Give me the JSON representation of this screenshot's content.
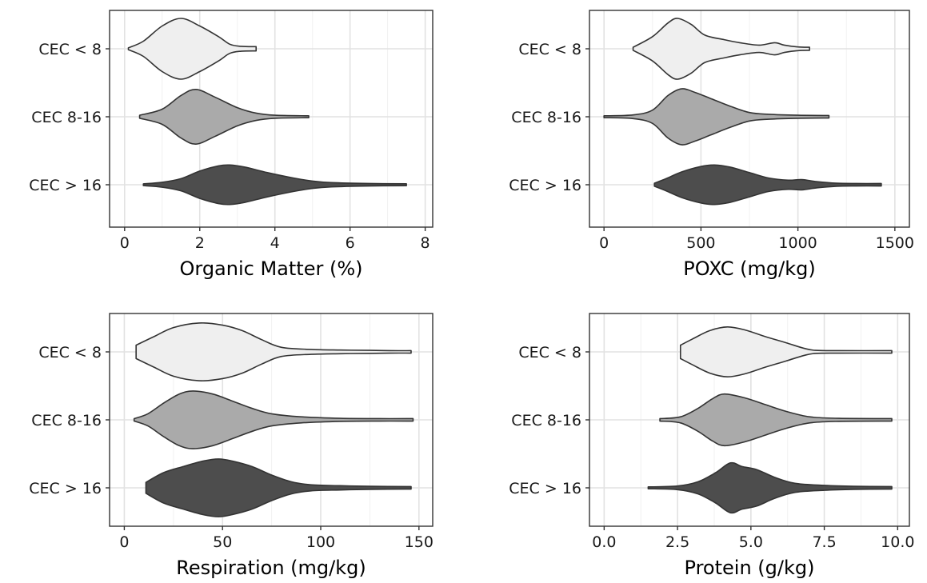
{
  "colors": {
    "panel_background": "#ffffff",
    "panel_border": "#333333",
    "grid_major": "#e2e2e2",
    "grid_minor": "#f1f1f1",
    "outline": "#333333",
    "axis_text": "#1a1a1a"
  },
  "chart_data": [
    {
      "type": "violin",
      "orientation": "horizontal",
      "xlabel": "Organic Matter (%)",
      "xlim": [
        -0.4,
        8.2
      ],
      "xticks": [
        0,
        2,
        4,
        6,
        8
      ],
      "tick_labels": [
        "0",
        "2",
        "4",
        "6",
        "8"
      ],
      "grid": true,
      "categories": [
        "CEC < 8",
        "CEC 8-16",
        "CEC > 16"
      ],
      "fills": [
        "#efefef",
        "#aaaaaa",
        "#4d4d4d"
      ],
      "series": [
        {
          "category": "CEC < 8",
          "min": 0.1,
          "max": 3.5,
          "density": [
            [
              0.1,
              0.03
            ],
            [
              0.5,
              0.25
            ],
            [
              1.0,
              0.75
            ],
            [
              1.5,
              1.0
            ],
            [
              2.0,
              0.75
            ],
            [
              2.5,
              0.4
            ],
            [
              2.8,
              0.15
            ],
            [
              3.1,
              0.08
            ],
            [
              3.5,
              0.07
            ]
          ]
        },
        {
          "category": "CEC 8-16",
          "min": 0.4,
          "max": 4.9,
          "density": [
            [
              0.4,
              0.05
            ],
            [
              1.0,
              0.25
            ],
            [
              1.5,
              0.7
            ],
            [
              1.9,
              0.9
            ],
            [
              2.4,
              0.65
            ],
            [
              3.0,
              0.3
            ],
            [
              3.5,
              0.12
            ],
            [
              4.0,
              0.05
            ],
            [
              4.9,
              0.03
            ]
          ]
        },
        {
          "category": "CEC > 16",
          "min": 0.5,
          "max": 7.5,
          "density": [
            [
              0.5,
              0.03
            ],
            [
              1.0,
              0.08
            ],
            [
              1.5,
              0.2
            ],
            [
              2.0,
              0.45
            ],
            [
              2.5,
              0.62
            ],
            [
              2.8,
              0.65
            ],
            [
              3.2,
              0.58
            ],
            [
              3.8,
              0.4
            ],
            [
              4.5,
              0.22
            ],
            [
              5.0,
              0.12
            ],
            [
              5.5,
              0.07
            ],
            [
              6.5,
              0.04
            ],
            [
              7.5,
              0.03
            ]
          ]
        }
      ]
    },
    {
      "type": "violin",
      "orientation": "horizontal",
      "xlabel": "POXC (mg/kg)",
      "xlim": [
        -75,
        1575
      ],
      "xticks": [
        0,
        500,
        1000,
        1500
      ],
      "tick_labels": [
        "0",
        "500",
        "1000",
        "1500"
      ],
      "grid": true,
      "categories": [
        "CEC < 8",
        "CEC 8-16",
        "CEC > 16"
      ],
      "fills": [
        "#efefef",
        "#aaaaaa",
        "#4d4d4d"
      ],
      "series": [
        {
          "category": "CEC < 8",
          "min": 150,
          "max": 1060,
          "density": [
            [
              150,
              0.05
            ],
            [
              250,
              0.4
            ],
            [
              330,
              0.85
            ],
            [
              380,
              1.0
            ],
            [
              450,
              0.8
            ],
            [
              520,
              0.45
            ],
            [
              620,
              0.3
            ],
            [
              700,
              0.2
            ],
            [
              800,
              0.12
            ],
            [
              880,
              0.2
            ],
            [
              930,
              0.12
            ],
            [
              1000,
              0.06
            ],
            [
              1060,
              0.05
            ]
          ]
        },
        {
          "category": "CEC 8-16",
          "min": 0,
          "max": 1160,
          "density": [
            [
              0,
              0.03
            ],
            [
              150,
              0.06
            ],
            [
              250,
              0.22
            ],
            [
              330,
              0.7
            ],
            [
              400,
              0.92
            ],
            [
              470,
              0.8
            ],
            [
              550,
              0.6
            ],
            [
              650,
              0.35
            ],
            [
              750,
              0.14
            ],
            [
              850,
              0.08
            ],
            [
              1000,
              0.05
            ],
            [
              1160,
              0.04
            ]
          ]
        },
        {
          "category": "CEC > 16",
          "min": 260,
          "max": 1430,
          "density": [
            [
              260,
              0.05
            ],
            [
              320,
              0.2
            ],
            [
              400,
              0.42
            ],
            [
              500,
              0.6
            ],
            [
              570,
              0.65
            ],
            [
              650,
              0.58
            ],
            [
              750,
              0.4
            ],
            [
              850,
              0.22
            ],
            [
              950,
              0.15
            ],
            [
              1020,
              0.17
            ],
            [
              1100,
              0.1
            ],
            [
              1200,
              0.05
            ],
            [
              1300,
              0.04
            ],
            [
              1430,
              0.04
            ]
          ]
        }
      ]
    },
    {
      "type": "violin",
      "orientation": "horizontal",
      "xlabel": "Respiration (mg/kg)",
      "xlim": [
        -7.5,
        157
      ],
      "xticks": [
        0,
        50,
        100,
        150
      ],
      "tick_labels": [
        "0",
        "50",
        "100",
        "150"
      ],
      "grid": true,
      "categories": [
        "CEC < 8",
        "CEC 8-16",
        "CEC > 16"
      ],
      "fills": [
        "#efefef",
        "#aaaaaa",
        "#4d4d4d"
      ],
      "series": [
        {
          "category": "CEC < 8",
          "min": 6,
          "max": 146,
          "density": [
            [
              6,
              0.22
            ],
            [
              15,
              0.5
            ],
            [
              25,
              0.8
            ],
            [
              38,
              0.95
            ],
            [
              50,
              0.88
            ],
            [
              60,
              0.7
            ],
            [
              70,
              0.4
            ],
            [
              80,
              0.15
            ],
            [
              95,
              0.08
            ],
            [
              110,
              0.06
            ],
            [
              125,
              0.05
            ],
            [
              135,
              0.04
            ],
            [
              146,
              0.04
            ]
          ]
        },
        {
          "category": "CEC 8-16",
          "min": 5,
          "max": 147,
          "density": [
            [
              5,
              0.04
            ],
            [
              12,
              0.2
            ],
            [
              20,
              0.55
            ],
            [
              28,
              0.85
            ],
            [
              35,
              0.95
            ],
            [
              45,
              0.85
            ],
            [
              55,
              0.62
            ],
            [
              65,
              0.38
            ],
            [
              75,
              0.2
            ],
            [
              90,
              0.1
            ],
            [
              110,
              0.05
            ],
            [
              130,
              0.04
            ],
            [
              147,
              0.04
            ]
          ]
        },
        {
          "category": "CEC > 16",
          "min": 11,
          "max": 146,
          "density": [
            [
              11,
              0.18
            ],
            [
              20,
              0.5
            ],
            [
              30,
              0.7
            ],
            [
              40,
              0.88
            ],
            [
              48,
              0.95
            ],
            [
              55,
              0.88
            ],
            [
              65,
              0.7
            ],
            [
              75,
              0.42
            ],
            [
              85,
              0.2
            ],
            [
              95,
              0.1
            ],
            [
              110,
              0.07
            ],
            [
              125,
              0.05
            ],
            [
              146,
              0.04
            ]
          ]
        }
      ]
    },
    {
      "type": "violin",
      "orientation": "horizontal",
      "xlabel": "Protein (g/kg)",
      "xlim": [
        -0.5,
        10.4
      ],
      "xticks": [
        0.0,
        2.5,
        5.0,
        7.5,
        10.0
      ],
      "tick_labels": [
        "0.0",
        "2.5",
        "5.0",
        "7.5",
        "10.0"
      ],
      "grid": true,
      "categories": [
        "CEC < 8",
        "CEC 8-16",
        "CEC > 16"
      ],
      "fills": [
        "#efefef",
        "#aaaaaa",
        "#4d4d4d"
      ],
      "series": [
        {
          "category": "CEC < 8",
          "min": 2.6,
          "max": 9.8,
          "density": [
            [
              2.6,
              0.22
            ],
            [
              3.0,
              0.42
            ],
            [
              3.6,
              0.7
            ],
            [
              4.2,
              0.82
            ],
            [
              4.8,
              0.72
            ],
            [
              5.5,
              0.5
            ],
            [
              6.2,
              0.3
            ],
            [
              6.8,
              0.12
            ],
            [
              7.2,
              0.05
            ],
            [
              8.0,
              0.04
            ],
            [
              9.8,
              0.04
            ]
          ]
        },
        {
          "category": "CEC 8-16",
          "min": 1.9,
          "max": 9.8,
          "density": [
            [
              1.9,
              0.04
            ],
            [
              2.6,
              0.1
            ],
            [
              3.2,
              0.38
            ],
            [
              3.7,
              0.7
            ],
            [
              4.1,
              0.85
            ],
            [
              4.8,
              0.72
            ],
            [
              5.5,
              0.5
            ],
            [
              6.2,
              0.28
            ],
            [
              7.0,
              0.1
            ],
            [
              8.0,
              0.05
            ],
            [
              9.8,
              0.04
            ]
          ]
        },
        {
          "category": "CEC > 16",
          "min": 1.5,
          "max": 9.8,
          "density": [
            [
              1.5,
              0.03
            ],
            [
              2.5,
              0.06
            ],
            [
              3.2,
              0.2
            ],
            [
              3.8,
              0.5
            ],
            [
              4.3,
              0.82
            ],
            [
              4.7,
              0.7
            ],
            [
              5.2,
              0.6
            ],
            [
              5.8,
              0.35
            ],
            [
              6.5,
              0.15
            ],
            [
              7.5,
              0.08
            ],
            [
              8.5,
              0.05
            ],
            [
              9.8,
              0.04
            ]
          ]
        }
      ]
    }
  ]
}
